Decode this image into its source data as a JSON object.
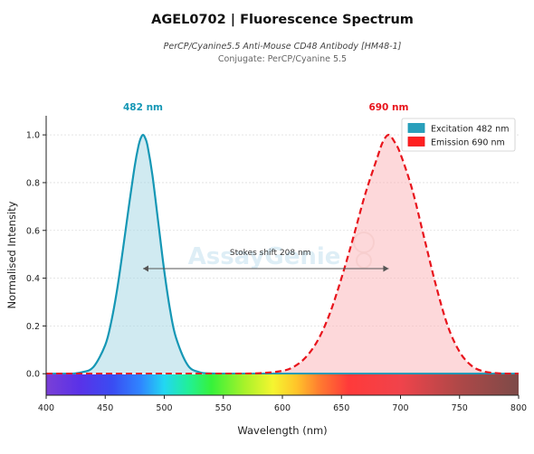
{
  "chart_data": {
    "type": "area",
    "title": "AGEL0702  |  Fluorescence Spectrum",
    "subtitle_line1": "PerCP/Cyanine5.5 Anti-Mouse CD48 Antibody [HM48-1]",
    "subtitle_line2": "Conjugate: PerCP/Cyanine 5.5",
    "xlabel": "Wavelength (nm)",
    "ylabel": "Normalised Intensity",
    "xlim": [
      400,
      800
    ],
    "ylim": [
      -0.09,
      1.08
    ],
    "xticks": [
      400,
      450,
      500,
      550,
      600,
      650,
      700,
      750,
      800
    ],
    "yticks": [
      0.0,
      0.2,
      0.4,
      0.6,
      0.8,
      1.0
    ],
    "grid": "horizontal dashed",
    "legend_position": "top-right",
    "series": [
      {
        "name": "Excitation  482 nm",
        "style": "solid",
        "color": "#1597b5",
        "fill": "#a9d9e5",
        "peak_nm": 482,
        "peak_label": "482 nm",
        "x": [
          400,
          420,
          430,
          440,
          450,
          455,
          460,
          465,
          470,
          475,
          478,
          480,
          482,
          484,
          486,
          490,
          495,
          500,
          505,
          510,
          520,
          530,
          540,
          560,
          600,
          650,
          700,
          750,
          800
        ],
        "y": [
          0.0,
          0.0,
          0.006,
          0.028,
          0.12,
          0.215,
          0.35,
          0.52,
          0.7,
          0.87,
          0.95,
          0.985,
          1.0,
          0.985,
          0.95,
          0.83,
          0.63,
          0.43,
          0.265,
          0.15,
          0.035,
          0.006,
          0.001,
          0.0,
          0.0,
          0.0,
          0.0,
          0.0,
          0.0
        ]
      },
      {
        "name": "Emission  690 nm",
        "style": "dashed",
        "color": "#e8141c",
        "fill": "#fbb8bb",
        "peak_nm": 690,
        "peak_label": "690 nm",
        "x": [
          400,
          450,
          500,
          550,
          580,
          600,
          610,
          620,
          630,
          640,
          650,
          660,
          670,
          680,
          685,
          690,
          695,
          700,
          710,
          720,
          730,
          740,
          750,
          760,
          770,
          780,
          790,
          800
        ],
        "y": [
          0.0,
          0.0,
          0.0,
          0.0,
          0.002,
          0.012,
          0.03,
          0.07,
          0.14,
          0.25,
          0.4,
          0.57,
          0.75,
          0.9,
          0.97,
          1.0,
          0.97,
          0.92,
          0.77,
          0.57,
          0.37,
          0.2,
          0.092,
          0.034,
          0.01,
          0.003,
          0.0,
          0.0
        ]
      }
    ],
    "annotation": "Stokes shift  208 nm",
    "annotation_arrow": {
      "x_start": 482,
      "x_end": 690,
      "y": 0.44
    },
    "spectrum_bar": true,
    "watermark": "AssayGenie"
  }
}
